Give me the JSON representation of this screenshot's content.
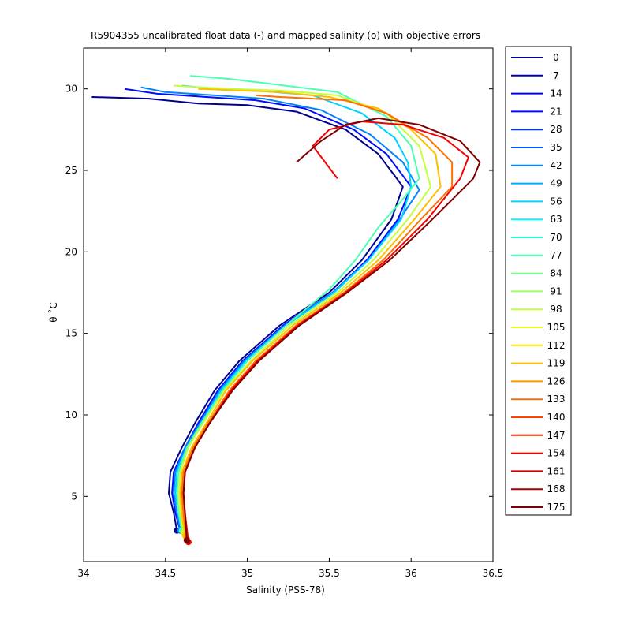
{
  "chart_data": {
    "type": "line",
    "title": "R5904355 uncalibrated float data (-) and mapped salinity (o) with objective errors",
    "xlabel": "Salinity (PSS-78)",
    "ylabel": "θ ˚C",
    "xlim": [
      34.0,
      36.5
    ],
    "ylim": [
      1.0,
      32.5
    ],
    "xticks": [
      "34",
      "34.5",
      "35",
      "35.5",
      "36",
      "36.5"
    ],
    "yticks": [
      "5",
      "10",
      "15",
      "20",
      "25",
      "30"
    ],
    "grid": false,
    "legend_position": "outside-right",
    "colormap": "jet",
    "legend": [
      {
        "label": "0",
        "color": "#00008f"
      },
      {
        "label": "7",
        "color": "#0000b8"
      },
      {
        "label": "14",
        "color": "#0000e0"
      },
      {
        "label": "21",
        "color": "#000cff"
      },
      {
        "label": "28",
        "color": "#0034ff"
      },
      {
        "label": "35",
        "color": "#005cff"
      },
      {
        "label": "42",
        "color": "#0084ff"
      },
      {
        "label": "49",
        "color": "#00acff"
      },
      {
        "label": "56",
        "color": "#00d4ff"
      },
      {
        "label": "63",
        "color": "#00fcff"
      },
      {
        "label": "70",
        "color": "#24ffdb"
      },
      {
        "label": "77",
        "color": "#4cffb3"
      },
      {
        "label": "84",
        "color": "#74ff8b"
      },
      {
        "label": "91",
        "color": "#9cff63"
      },
      {
        "label": "98",
        "color": "#c4ff3b"
      },
      {
        "label": "105",
        "color": "#ecff13"
      },
      {
        "label": "112",
        "color": "#ffe600"
      },
      {
        "label": "119",
        "color": "#ffbe00"
      },
      {
        "label": "126",
        "color": "#ff9600"
      },
      {
        "label": "133",
        "color": "#ff6e00"
      },
      {
        "label": "140",
        "color": "#ff4600"
      },
      {
        "label": "147",
        "color": "#ff1e00"
      },
      {
        "label": "154",
        "color": "#f50000"
      },
      {
        "label": "161",
        "color": "#cd0000"
      },
      {
        "label": "168",
        "color": "#a50000"
      },
      {
        "label": "175",
        "color": "#800000"
      }
    ],
    "series": [
      {
        "values": [
          [
            34.57,
            2.9
          ],
          [
            34.55,
            4.0
          ],
          [
            34.52,
            5.2
          ],
          [
            34.53,
            6.5
          ],
          [
            34.6,
            8.0
          ],
          [
            34.68,
            9.5
          ],
          [
            34.8,
            11.5
          ],
          [
            34.95,
            13.3
          ],
          [
            35.2,
            15.5
          ],
          [
            35.5,
            17.5
          ],
          [
            35.7,
            19.5
          ],
          [
            35.88,
            22.0
          ],
          [
            35.95,
            24.0
          ],
          [
            35.8,
            26.0
          ],
          [
            35.6,
            27.5
          ],
          [
            35.3,
            28.6
          ],
          [
            35.0,
            29.0
          ],
          [
            34.7,
            29.1
          ],
          [
            34.4,
            29.4
          ],
          [
            34.05,
            29.5
          ]
        ]
      },
      {
        "values": [
          [
            34.59,
            2.9
          ],
          [
            34.56,
            4.0
          ],
          [
            34.54,
            5.2
          ],
          [
            34.55,
            6.5
          ],
          [
            34.62,
            8.0
          ],
          [
            34.7,
            9.5
          ],
          [
            34.82,
            11.5
          ],
          [
            34.97,
            13.3
          ],
          [
            35.22,
            15.5
          ],
          [
            35.52,
            17.5
          ],
          [
            35.73,
            19.5
          ],
          [
            35.92,
            22.0
          ],
          [
            36.0,
            24.0
          ],
          [
            35.85,
            26.0
          ],
          [
            35.65,
            27.5
          ],
          [
            35.35,
            28.8
          ],
          [
            35.05,
            29.3
          ],
          [
            34.75,
            29.5
          ],
          [
            34.45,
            29.7
          ],
          [
            34.25,
            30.0
          ]
        ]
      },
      {
        "values": [
          [
            34.59,
            2.9
          ],
          [
            34.57,
            4.0
          ],
          [
            34.55,
            5.2
          ],
          [
            34.56,
            6.5
          ],
          [
            34.62,
            8.0
          ],
          [
            34.71,
            9.5
          ],
          [
            34.83,
            11.5
          ],
          [
            34.98,
            13.3
          ],
          [
            35.23,
            15.5
          ],
          [
            35.52,
            17.5
          ],
          [
            35.74,
            19.5
          ],
          [
            35.93,
            22.0
          ],
          [
            36.05,
            23.8
          ],
          [
            35.95,
            25.5
          ],
          [
            35.75,
            27.2
          ],
          [
            35.45,
            28.7
          ],
          [
            35.1,
            29.4
          ],
          [
            34.8,
            29.6
          ],
          [
            34.5,
            29.8
          ],
          [
            34.35,
            30.1
          ]
        ]
      },
      {
        "values": [
          [
            34.6,
            2.9
          ],
          [
            34.58,
            4.0
          ],
          [
            34.56,
            5.2
          ],
          [
            34.57,
            6.5
          ],
          [
            34.63,
            8.0
          ],
          [
            34.72,
            9.5
          ],
          [
            34.84,
            11.5
          ],
          [
            34.99,
            13.3
          ],
          [
            35.24,
            15.5
          ],
          [
            35.53,
            17.5
          ],
          [
            35.74,
            19.5
          ],
          [
            35.94,
            22.0
          ],
          [
            36.0,
            24.0
          ],
          [
            35.98,
            25.5
          ],
          [
            35.9,
            27.0
          ],
          [
            35.7,
            28.5
          ],
          [
            35.4,
            29.6
          ],
          [
            35.05,
            29.9
          ],
          [
            34.8,
            30.0
          ],
          [
            34.6,
            30.2
          ]
        ]
      },
      {
        "values": [
          [
            34.6,
            2.9
          ],
          [
            34.58,
            4.0
          ],
          [
            34.57,
            5.2
          ],
          [
            34.58,
            6.5
          ],
          [
            34.63,
            8.0
          ],
          [
            34.72,
            9.5
          ],
          [
            34.85,
            11.5
          ],
          [
            35.0,
            13.3
          ],
          [
            35.24,
            15.5
          ],
          [
            35.5,
            17.7
          ],
          [
            35.66,
            19.5
          ],
          [
            35.8,
            21.5
          ],
          [
            35.93,
            23.0
          ],
          [
            36.05,
            24.5
          ],
          [
            36.0,
            26.5
          ],
          [
            35.85,
            28.3
          ],
          [
            35.55,
            29.8
          ],
          [
            35.15,
            30.3
          ],
          [
            34.9,
            30.6
          ],
          [
            34.65,
            30.8
          ]
        ]
      },
      {
        "values": [
          [
            34.61,
            2.8
          ],
          [
            34.59,
            4.0
          ],
          [
            34.58,
            5.2
          ],
          [
            34.59,
            6.5
          ],
          [
            34.64,
            8.0
          ],
          [
            34.73,
            9.5
          ],
          [
            34.86,
            11.5
          ],
          [
            35.02,
            13.3
          ],
          [
            35.26,
            15.5
          ],
          [
            35.55,
            17.5
          ],
          [
            35.77,
            19.5
          ],
          [
            35.98,
            22.0
          ],
          [
            36.12,
            24.0
          ],
          [
            36.05,
            26.5
          ],
          [
            35.85,
            28.5
          ],
          [
            35.55,
            29.6
          ],
          [
            35.2,
            29.9
          ],
          [
            34.9,
            30.0
          ],
          [
            34.7,
            30.1
          ],
          [
            34.55,
            30.2
          ]
        ]
      },
      {
        "values": [
          [
            34.62,
            2.6
          ],
          [
            34.6,
            3.9
          ],
          [
            34.59,
            5.2
          ],
          [
            34.6,
            6.5
          ],
          [
            34.66,
            8.0
          ],
          [
            34.75,
            9.5
          ],
          [
            34.87,
            11.5
          ],
          [
            35.03,
            13.3
          ],
          [
            35.28,
            15.5
          ],
          [
            35.57,
            17.5
          ],
          [
            35.8,
            19.5
          ],
          [
            36.02,
            22.0
          ],
          [
            36.18,
            24.0
          ],
          [
            36.15,
            26.0
          ],
          [
            36.0,
            27.5
          ],
          [
            35.8,
            28.8
          ],
          [
            35.5,
            29.5
          ],
          [
            35.2,
            29.8
          ],
          [
            34.95,
            29.9
          ],
          [
            34.7,
            30.0
          ]
        ]
      },
      {
        "values": [
          [
            34.63,
            2.4
          ],
          [
            34.61,
            3.9
          ],
          [
            34.6,
            5.2
          ],
          [
            34.61,
            6.5
          ],
          [
            34.67,
            8.0
          ],
          [
            34.76,
            9.5
          ],
          [
            34.89,
            11.5
          ],
          [
            35.05,
            13.3
          ],
          [
            35.3,
            15.5
          ],
          [
            35.59,
            17.5
          ],
          [
            35.83,
            19.5
          ],
          [
            36.06,
            22.0
          ],
          [
            36.25,
            24.0
          ],
          [
            36.25,
            25.5
          ],
          [
            36.1,
            27.0
          ],
          [
            35.85,
            28.5
          ],
          [
            35.6,
            29.3
          ],
          [
            35.4,
            29.4
          ],
          [
            35.2,
            29.5
          ],
          [
            35.05,
            29.6
          ]
        ]
      },
      {
        "values": [
          [
            34.64,
            2.2
          ],
          [
            34.62,
            3.9
          ],
          [
            34.61,
            5.2
          ],
          [
            34.62,
            6.5
          ],
          [
            34.68,
            8.0
          ],
          [
            34.77,
            9.5
          ],
          [
            34.9,
            11.5
          ],
          [
            35.06,
            13.3
          ],
          [
            35.31,
            15.5
          ],
          [
            35.6,
            17.5
          ],
          [
            35.85,
            19.5
          ],
          [
            36.1,
            22.0
          ],
          [
            36.3,
            24.5
          ],
          [
            36.35,
            25.8
          ],
          [
            36.2,
            27.0
          ],
          [
            35.95,
            27.8
          ],
          [
            35.7,
            28.0
          ],
          [
            35.5,
            27.5
          ],
          [
            35.4,
            26.5
          ],
          [
            35.55,
            24.5
          ]
        ]
      },
      {
        "values": [
          [
            34.63,
            2.3
          ],
          [
            34.62,
            3.9
          ],
          [
            34.61,
            5.2
          ],
          [
            34.62,
            6.5
          ],
          [
            34.68,
            8.0
          ],
          [
            34.77,
            9.5
          ],
          [
            34.91,
            11.5
          ],
          [
            35.07,
            13.3
          ],
          [
            35.32,
            15.5
          ],
          [
            35.61,
            17.5
          ],
          [
            35.87,
            19.5
          ],
          [
            36.13,
            22.0
          ],
          [
            36.38,
            24.5
          ],
          [
            36.42,
            25.5
          ],
          [
            36.3,
            26.8
          ],
          [
            36.05,
            27.8
          ],
          [
            35.8,
            28.2
          ],
          [
            35.6,
            27.8
          ],
          [
            35.45,
            26.8
          ],
          [
            35.3,
            25.5
          ]
        ]
      }
    ]
  }
}
